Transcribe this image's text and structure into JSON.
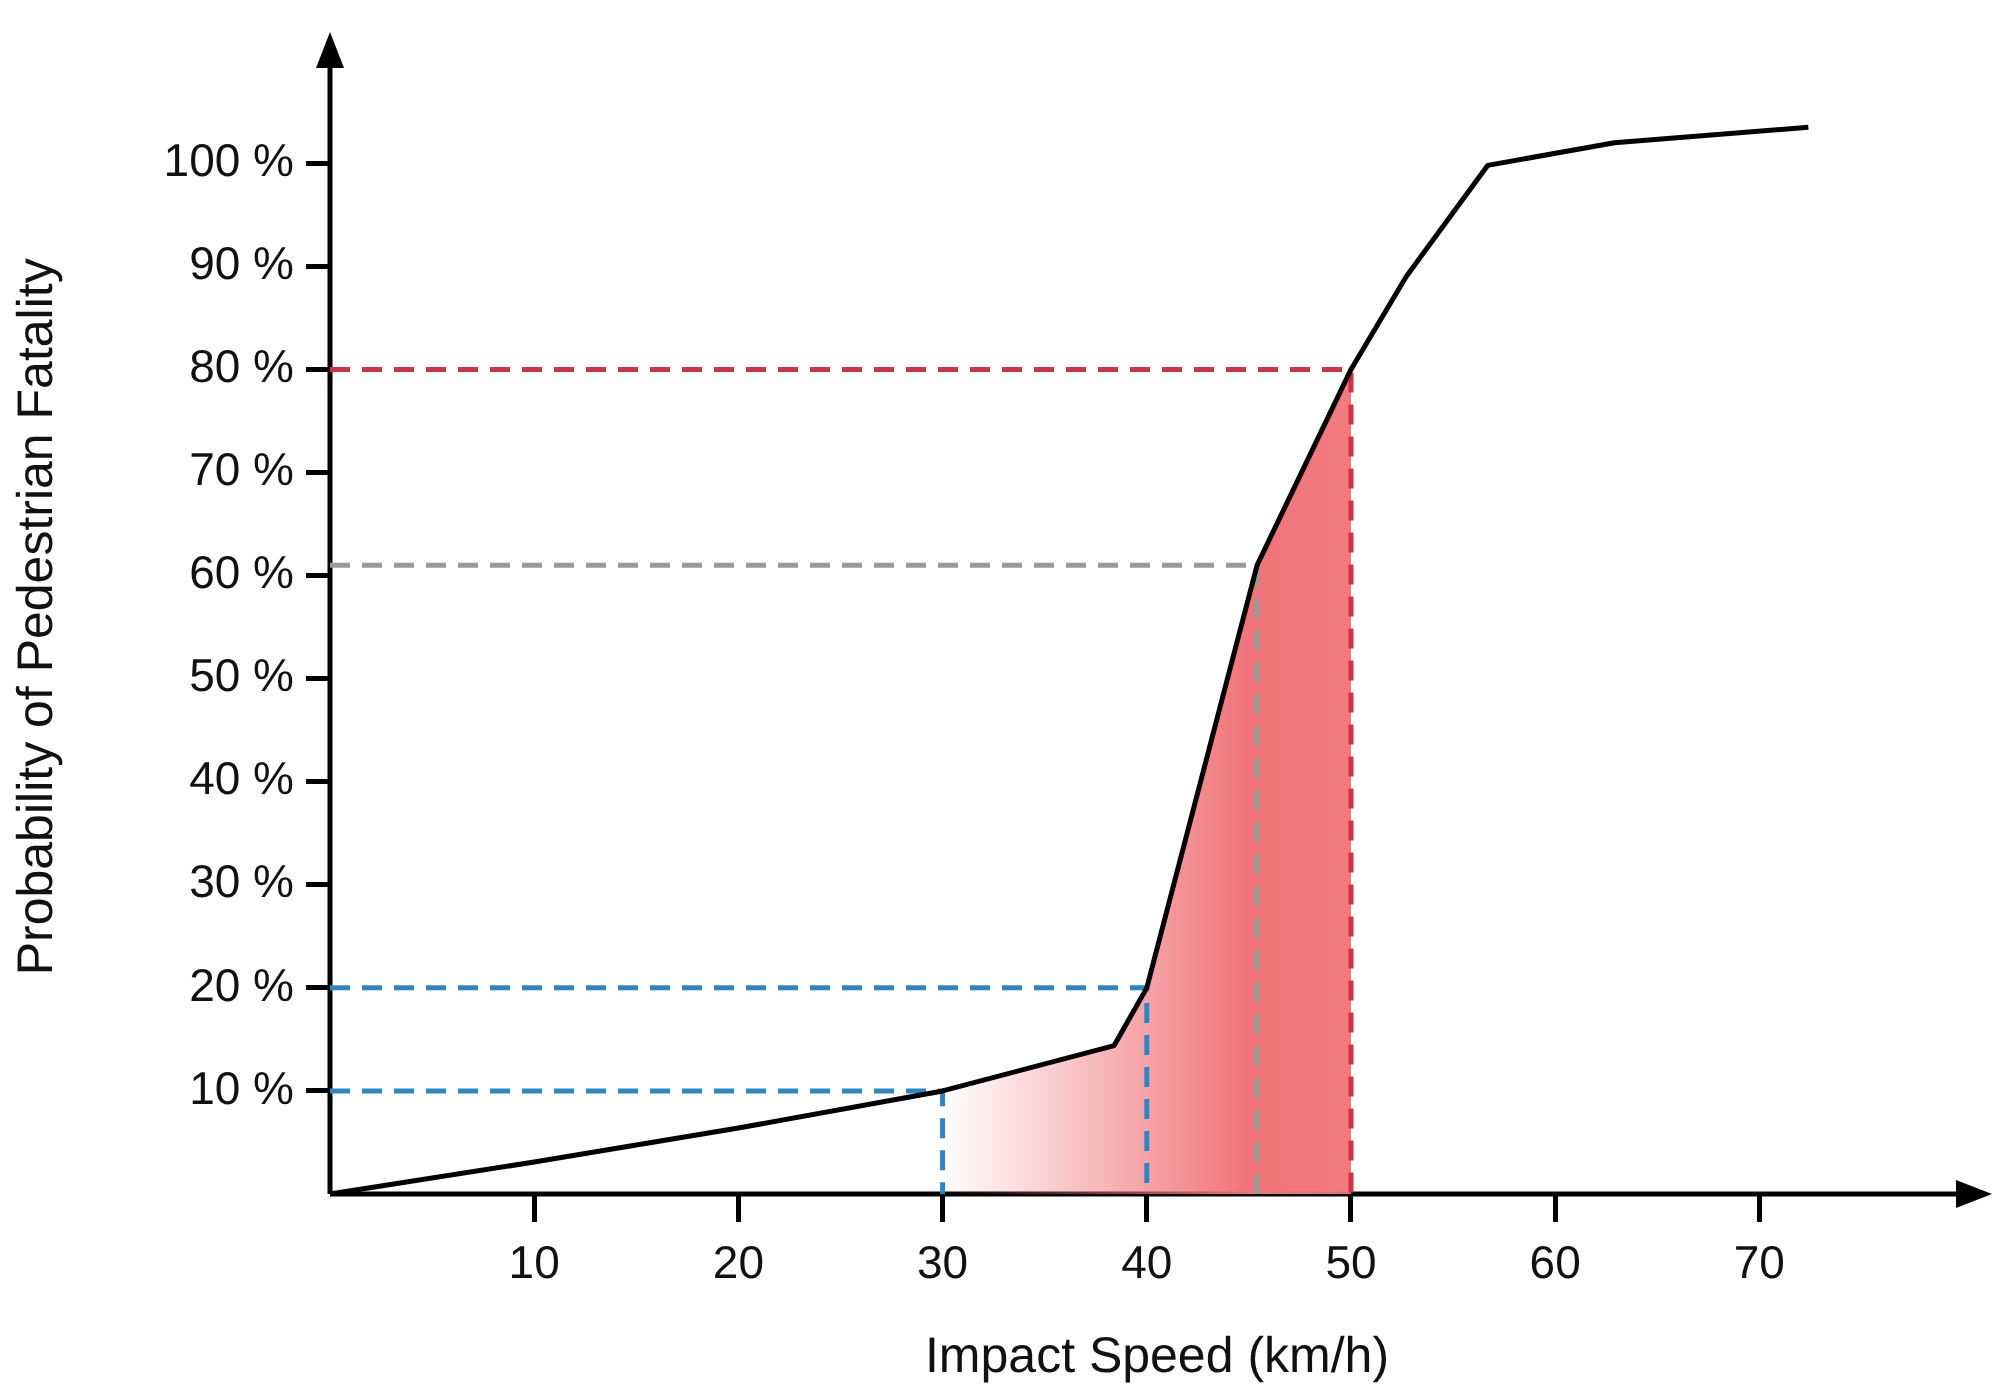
{
  "chart_data": {
    "type": "line",
    "xlabel": "Impact Speed (km/h)",
    "ylabel": "Probability of Pedestrian Fatality",
    "xlim": [
      0,
      81
    ],
    "ylim": [
      0,
      112
    ],
    "xticks": [
      10,
      20,
      30,
      40,
      50,
      60,
      70
    ],
    "yticks": [
      {
        "value": 10,
        "label": "10 %"
      },
      {
        "value": 20,
        "label": "20 %"
      },
      {
        "value": 30,
        "label": "30 %"
      },
      {
        "value": 40,
        "label": "40 %"
      },
      {
        "value": 50,
        "label": "50 %"
      },
      {
        "value": 60,
        "label": "60 %"
      },
      {
        "value": 70,
        "label": "70 %"
      },
      {
        "value": 80,
        "label": "80 %"
      },
      {
        "value": 90,
        "label": "90 %"
      },
      {
        "value": 100,
        "label": "100 %"
      }
    ],
    "grid": false,
    "legend": false,
    "marker": "none",
    "series": [
      {
        "type": "area",
        "color": "#f07478",
        "x": [
          30,
          38.4,
          40,
          45.4,
          50
        ],
        "values": [
          10,
          14.4,
          20,
          61,
          80
        ]
      },
      {
        "type": "line",
        "color": "#2a86c8",
        "line_style": "dashed",
        "x": [
          0,
          30,
          30
        ],
        "values": [
          10,
          10,
          0
        ]
      },
      {
        "type": "line",
        "color": "#2a86c8",
        "line_style": "dashed",
        "x": [
          0,
          40,
          40
        ],
        "values": [
          20,
          20,
          0
        ]
      },
      {
        "type": "line",
        "color": "#999999",
        "line_style": "dashed",
        "x": [
          0,
          45.4,
          45.4
        ],
        "values": [
          61,
          61,
          0
        ]
      },
      {
        "type": "line",
        "color": "#d03040",
        "line_style": "dashed",
        "x": [
          0,
          50,
          50
        ],
        "values": [
          80,
          80,
          0
        ]
      },
      {
        "color": "#000000",
        "line_style": "solid",
        "x": [
          0,
          10,
          20,
          30,
          38.4,
          40,
          45.4,
          50,
          52.7,
          56.7,
          62.9,
          72.4
        ],
        "values": [
          0,
          3.1,
          6.4,
          10,
          14.4,
          20,
          61,
          80,
          89,
          99.8,
          102,
          103.5
        ]
      }
    ]
  }
}
